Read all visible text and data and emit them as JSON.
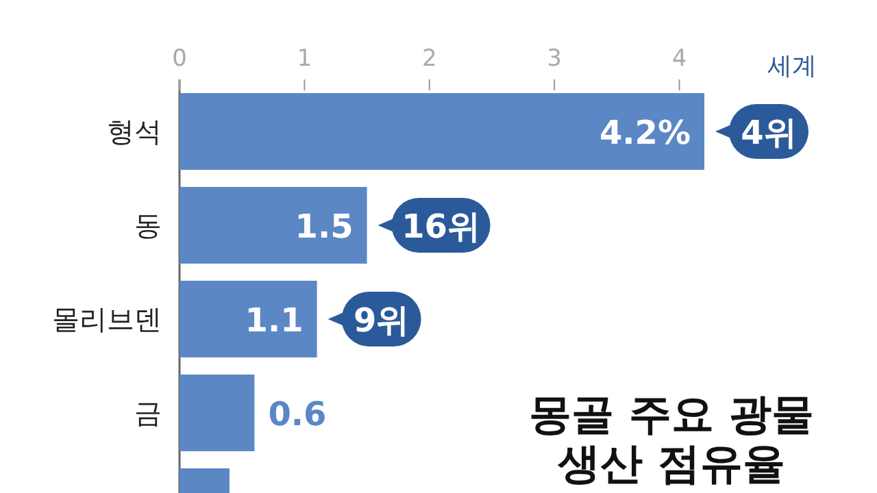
{
  "chart_data": {
    "type": "bar",
    "orientation": "horizontal",
    "title": "몽골 주요 광물 생산 점유율",
    "categories": [
      "형석",
      "동",
      "몰리브덴",
      "금",
      null
    ],
    "values": [
      4.2,
      1.5,
      1.1,
      0.6,
      0.4
    ],
    "value_labels": [
      "4.2%",
      "1.5",
      "1.1",
      "0.6",
      null
    ],
    "color": "#5b87c5",
    "xlim": [
      0,
      4.2
    ],
    "xticks": [
      0,
      1,
      2,
      3,
      4
    ],
    "annotations": [
      "세계",
      {
        "text": "4위",
        "x": 4.2,
        "y": "형석"
      },
      {
        "text": "16위",
        "x": 1.5,
        "y": "동"
      },
      {
        "text": "9위",
        "x": 1.1,
        "y": "몰리브덴"
      }
    ]
  }
}
